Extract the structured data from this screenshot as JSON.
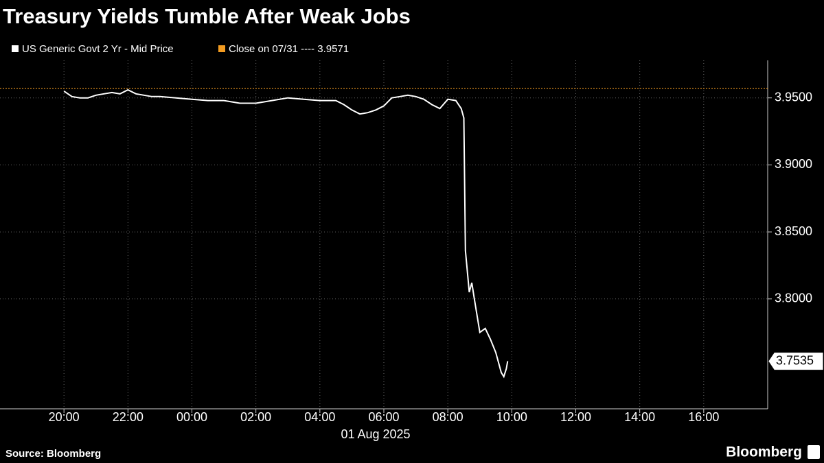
{
  "chart_data": {
    "type": "line",
    "title": "Treasury Yields Tumble After Weak Jobs",
    "source": "Source: Bloomberg",
    "brand": "Bloomberg",
    "date_label": "01 Aug 2025",
    "x": [
      20,
      20.25,
      20.5,
      20.75,
      21,
      21.25,
      21.5,
      21.75,
      22,
      22.25,
      22.5,
      22.75,
      23,
      23.5,
      24,
      24.5,
      25,
      25.5,
      26,
      26.5,
      27,
      27.5,
      28,
      28.5,
      28.75,
      29,
      29.25,
      29.5,
      29.75,
      30,
      30.25,
      30.5,
      30.75,
      31,
      31.25,
      31.5,
      31.75,
      32,
      32.25,
      32.42,
      32.5,
      32.55,
      32.67,
      32.75,
      32.83,
      33,
      33.17,
      33.33,
      33.5,
      33.67,
      33.75,
      33.83,
      33.87
    ],
    "series": [
      {
        "name": "US Generic Govt 2 Yr - Mid Price",
        "color": "#ffffff",
        "values": [
          3.955,
          3.951,
          3.95,
          3.95,
          3.952,
          3.953,
          3.954,
          3.953,
          3.956,
          3.953,
          3.952,
          3.951,
          3.951,
          3.95,
          3.949,
          3.948,
          3.948,
          3.946,
          3.946,
          3.948,
          3.95,
          3.949,
          3.948,
          3.948,
          3.945,
          3.941,
          3.938,
          3.939,
          3.941,
          3.944,
          3.95,
          3.951,
          3.952,
          3.951,
          3.949,
          3.945,
          3.942,
          3.949,
          3.948,
          3.942,
          3.935,
          3.836,
          3.805,
          3.812,
          3.8,
          3.775,
          3.778,
          3.77,
          3.76,
          3.745,
          3.742,
          3.748,
          3.7535
        ]
      }
    ],
    "reference_line": {
      "label": "Close on 07/31 ---- 3.9571",
      "value": 3.9571,
      "color": "#f39c21"
    },
    "xlim": [
      18,
      42
    ],
    "ylim": [
      3.718,
      3.978
    ],
    "xticks": [
      {
        "value": 20,
        "label": "20:00"
      },
      {
        "value": 22,
        "label": "22:00"
      },
      {
        "value": 24,
        "label": "00:00"
      },
      {
        "value": 26,
        "label": "02:00"
      },
      {
        "value": 28,
        "label": "04:00"
      },
      {
        "value": 30,
        "label": "06:00"
      },
      {
        "value": 32,
        "label": "08:00"
      },
      {
        "value": 34,
        "label": "10:00"
      },
      {
        "value": 36,
        "label": "12:00"
      },
      {
        "value": 38,
        "label": "14:00"
      },
      {
        "value": 40,
        "label": "16:00"
      }
    ],
    "yticks": [
      {
        "value": 3.8,
        "label": "3.8000"
      },
      {
        "value": 3.85,
        "label": "3.8500"
      },
      {
        "value": 3.9,
        "label": "3.9000"
      },
      {
        "value": 3.95,
        "label": "3.9500"
      }
    ],
    "grid": true
  }
}
